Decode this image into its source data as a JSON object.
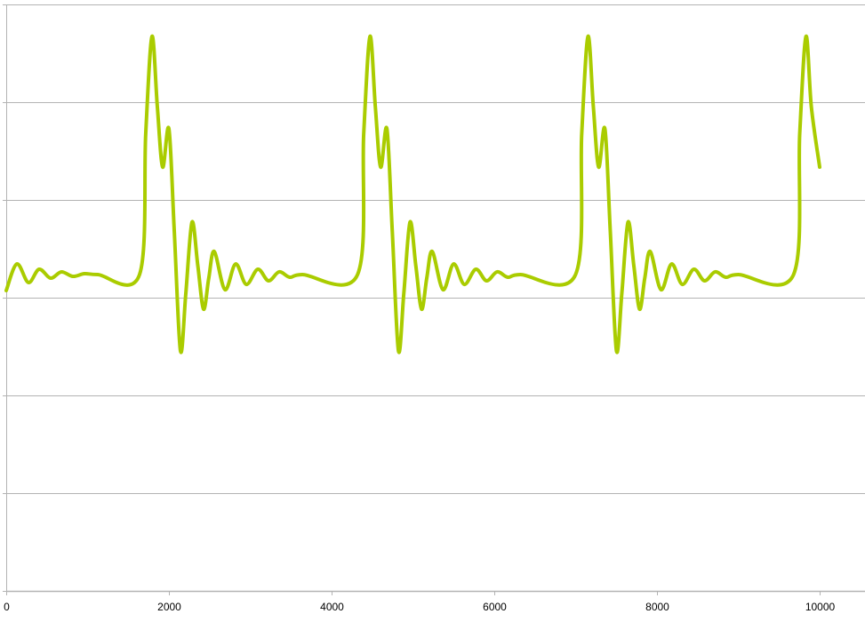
{
  "chart_data": {
    "type": "line",
    "title": "",
    "xlabel": "",
    "ylabel": "",
    "xlim": [
      0,
      10000
    ],
    "ylim": [
      -3,
      3
    ],
    "x_ticks": [
      0,
      2000,
      4000,
      6000,
      8000,
      10000
    ],
    "x_tick_labels": [
      "0",
      "2000",
      "4000",
      "6000",
      "8000",
      "10000"
    ],
    "y_gridlines": [
      -3,
      -2,
      -1,
      0,
      1,
      2,
      3
    ],
    "y_tick_labels_shown": false,
    "grid": "horizontal",
    "legend": "none",
    "colors": {
      "series": "#AACC00",
      "grid": "#B3B3B3",
      "axis": "#B3B3B3"
    },
    "series": [
      {
        "x": [
          0,
          131,
          273,
          404,
          546,
          678,
          820,
          962,
          1126,
          1639,
          1715,
          1792,
          1858,
          1923,
          2000,
          2066,
          2142,
          2208,
          2284,
          2355,
          2426,
          2490,
          2557,
          2689,
          2820,
          2951,
          3093,
          3224,
          3355,
          3486,
          3640,
          4319,
          4395,
          4472,
          4538,
          4603,
          4680,
          4746,
          4822,
          4888,
          4964,
          5035,
          5106,
          5170,
          5237,
          5369,
          5500,
          5631,
          5773,
          5904,
          6035,
          6166,
          6320,
          6999,
          7075,
          7152,
          7218,
          7283,
          7360,
          7426,
          7502,
          7568,
          7644,
          7715,
          7786,
          7850,
          7917,
          8049,
          8180,
          8311,
          8453,
          8584,
          8715,
          8846,
          9000,
          9679,
          9755,
          9832,
          9898,
          10000
        ],
        "y": [
          0.073,
          0.345,
          0.155,
          0.291,
          0.2,
          0.264,
          0.218,
          0.245,
          0.236,
          0.236,
          1.68,
          2.673,
          1.95,
          1.336,
          1.727,
          0.68,
          -0.545,
          0.045,
          0.773,
          0.33,
          -0.118,
          0.2,
          0.473,
          0.082,
          0.345,
          0.136,
          0.291,
          0.173,
          0.264,
          0.209,
          0.236,
          0.236,
          1.68,
          2.673,
          1.95,
          1.336,
          1.727,
          0.68,
          -0.545,
          0.045,
          0.773,
          0.33,
          -0.118,
          0.2,
          0.473,
          0.082,
          0.345,
          0.136,
          0.291,
          0.173,
          0.264,
          0.209,
          0.236,
          0.236,
          1.68,
          2.673,
          1.95,
          1.336,
          1.727,
          0.68,
          -0.545,
          0.045,
          0.773,
          0.33,
          -0.118,
          0.2,
          0.473,
          0.082,
          0.345,
          0.136,
          0.291,
          0.173,
          0.264,
          0.209,
          0.236,
          0.236,
          1.68,
          2.673,
          1.95,
          1.336
        ]
      }
    ]
  }
}
